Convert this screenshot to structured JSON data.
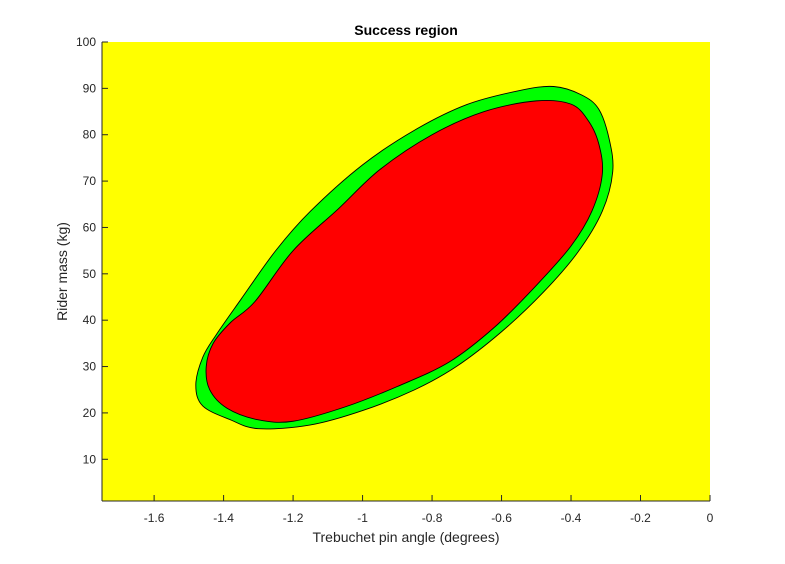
{
  "chart_data": {
    "type": "contour",
    "title": "Success region",
    "xlabel": "Trebuchet pin angle (degrees)",
    "ylabel": "Rider mass (kg)",
    "xlim": [
      -1.75,
      0
    ],
    "ylim": [
      1,
      100
    ],
    "x_ticks": [
      -1.6,
      -1.4,
      -1.2,
      -1,
      -0.8,
      -0.6,
      -0.4,
      -0.2,
      0
    ],
    "x_tick_labels": [
      "-1.6",
      "-1.4",
      "-1.2",
      "-1",
      "-0.8",
      "-0.6",
      "-0.4",
      "-0.2",
      "0"
    ],
    "y_ticks": [
      10,
      20,
      30,
      40,
      50,
      60,
      70,
      80,
      90,
      100
    ],
    "y_tick_labels": [
      "10",
      "20",
      "30",
      "40",
      "50",
      "60",
      "70",
      "80",
      "90",
      "100"
    ],
    "grid": false,
    "legend": "none",
    "colors": {
      "background_region": "#FFFF00",
      "outer_region": "#00FF00",
      "inner_region": "#FF0000",
      "outline": "#000000"
    },
    "regions": [
      {
        "color_key": "outer_region",
        "boundary": [
          [
            -1.35,
            44.5
          ],
          [
            -1.25,
            55
          ],
          [
            -1.15,
            63.5
          ],
          [
            -1.0,
            73.5
          ],
          [
            -0.85,
            81
          ],
          [
            -0.7,
            86.5
          ],
          [
            -0.55,
            89.5
          ],
          [
            -0.45,
            90.4
          ],
          [
            -0.37,
            88.6
          ],
          [
            -0.32,
            85.5
          ],
          [
            -0.29,
            79
          ],
          [
            -0.28,
            72
          ],
          [
            -0.31,
            63.5
          ],
          [
            -0.38,
            54.7
          ],
          [
            -0.48,
            46
          ],
          [
            -0.6,
            37.5
          ],
          [
            -0.73,
            30
          ],
          [
            -0.85,
            25
          ],
          [
            -1.0,
            20.5
          ],
          [
            -1.15,
            17.4
          ],
          [
            -1.3,
            16.6
          ],
          [
            -1.38,
            18.5
          ],
          [
            -1.46,
            21.5
          ],
          [
            -1.48,
            26
          ],
          [
            -1.46,
            32
          ],
          [
            -1.42,
            37
          ]
        ]
      },
      {
        "color_key": "inner_region",
        "boundary": [
          [
            -1.31,
            44
          ],
          [
            -1.2,
            55
          ],
          [
            -1.07,
            64
          ],
          [
            -0.95,
            72.5
          ],
          [
            -0.8,
            80
          ],
          [
            -0.65,
            85
          ],
          [
            -0.5,
            87.3
          ],
          [
            -0.4,
            86.6
          ],
          [
            -0.35,
            83
          ],
          [
            -0.32,
            78
          ],
          [
            -0.31,
            71.5
          ],
          [
            -0.34,
            63.5
          ],
          [
            -0.4,
            56
          ],
          [
            -0.5,
            47.5
          ],
          [
            -0.62,
            38.5
          ],
          [
            -0.75,
            31
          ],
          [
            -0.9,
            25.7
          ],
          [
            -1.05,
            21.3
          ],
          [
            -1.2,
            18.2
          ],
          [
            -1.3,
            18.5
          ],
          [
            -1.39,
            21
          ],
          [
            -1.44,
            25
          ],
          [
            -1.45,
            30
          ],
          [
            -1.43,
            35
          ],
          [
            -1.38,
            39.5
          ]
        ]
      }
    ]
  }
}
